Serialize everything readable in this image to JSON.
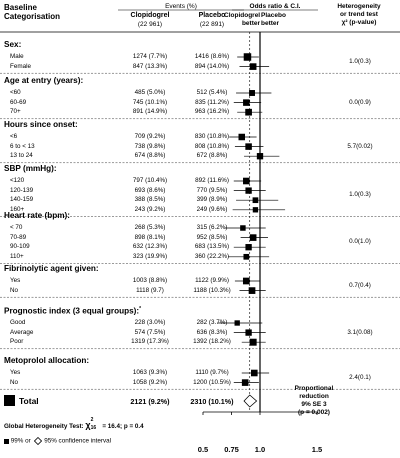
{
  "header": {
    "baseline_line1": "Baseline",
    "baseline_line2": "Categorisation",
    "events_title": "Events (%)",
    "clopidogrel_name": "Clopidogrel",
    "clopidogrel_n": "(22 961)",
    "placebo_name": "Placebo",
    "placebo_n": "(22 891)",
    "or_title": "Odds ratio & C.I.",
    "clop_better_1": "Clopidogrel",
    "clop_better_2": "better",
    "plac_better_1": "Placebo",
    "plac_better_2": "better",
    "het_line1": "Heterogeneity",
    "het_line2": "or trend test",
    "het_line3": "χ² (p-value)"
  },
  "sections": [
    {
      "title": "Sex:",
      "het": "1.0(0.3)",
      "rows": [
        {
          "label": "Male",
          "clop": "1274 (7.7%)",
          "plac": "1416 (8.6%)"
        },
        {
          "label": "Female",
          "clop": "847 (13.3%)",
          "plac": "894 (14.0%)"
        }
      ]
    },
    {
      "title": "Age at entry (years):",
      "het": "0.0(0.9)",
      "rows": [
        {
          "label": "<60",
          "clop": "485 (5.0%)",
          "plac": "512 (5.4%)"
        },
        {
          "label": "60-69",
          "clop": "745 (10.1%)",
          "plac": "835 (11.2%)"
        },
        {
          "label": "70+",
          "clop": "891 (14.9%)",
          "plac": "963 (16.2%)"
        }
      ]
    },
    {
      "title": "Hours since onset:",
      "het": "5.7(0.02)",
      "rows": [
        {
          "label": "<6",
          "clop": "709 (9.2%)",
          "plac": "830 (10.8%)"
        },
        {
          "label": "6 to < 13",
          "clop": "738 (9.8%)",
          "plac": "808 (10.8%)"
        },
        {
          "label": "13 to 24",
          "clop": "674 (8.8%)",
          "plac": "672 (8.8%)"
        }
      ]
    },
    {
      "title": "SBP (mmHg):",
      "het": "1.0(0.3)",
      "rows": [
        {
          "label": "<120",
          "clop": "797 (10.4%)",
          "plac": "892 (11.6%)"
        },
        {
          "label": "120-139",
          "clop": "693 (8.6%)",
          "plac": "770 (9.5%)"
        },
        {
          "label": "140-159",
          "clop": "388 (8.5%)",
          "plac": "399 (8.9%)"
        },
        {
          "label": "160+",
          "clop": "243 (9.2%)",
          "plac": "249 (9.6%)"
        }
      ]
    },
    {
      "title": "Heart rate (bpm):",
      "het": "0.0(1.0)",
      "rows": [
        {
          "label": "< 70",
          "clop": "268 (5.3%)",
          "plac": "315 (6.2%)"
        },
        {
          "label": "70-89",
          "clop": "898 (8.1%)",
          "plac": "952 (8.5%)"
        },
        {
          "label": "90-109",
          "clop": "632 (12.3%)",
          "plac": "683 (13.5%)"
        },
        {
          "label": "110+",
          "clop": "323 (19.9%)",
          "plac": "360 (22.2%)"
        }
      ]
    },
    {
      "title": "Fibrinolytic agent given:",
      "het": "0.7(0.4)",
      "rows": [
        {
          "label": "Yes",
          "clop": "1003 (8.8%)",
          "plac": "1122 (9.9%)"
        },
        {
          "label": "No",
          "clop": "1118 (9.7)",
          "plac": "1188 (10.3%)"
        }
      ]
    },
    {
      "title": "Prognostic index (3 equal groups):",
      "title_sup": "*",
      "het": "3.1(0.08)",
      "rows": [
        {
          "label": "Good",
          "clop": "228 (3.0%)",
          "plac": "282 (3.7%)"
        },
        {
          "label": "Average",
          "clop": "574 (7.5%)",
          "plac": "636 (8.3%)"
        },
        {
          "label": "Poor",
          "clop": "1319 (17.3%)",
          "plac": "1392 (18.2%)"
        }
      ]
    },
    {
      "title": "Metoprolol allocation:",
      "het": "2.4(0.1)",
      "rows": [
        {
          "label": "Yes",
          "clop": "1063 (9.3%)",
          "plac": "1110 (9.7%)"
        },
        {
          "label": "No",
          "clop": "1058 (9.2%)",
          "plac": "1200 (10.5%)"
        }
      ]
    }
  ],
  "total": {
    "label": "Total",
    "clop": "2121 (9.2%)",
    "plac": "2310 (10.1%)"
  },
  "reduction": {
    "line1": "Proportional",
    "line2": "reduction",
    "line3": "9% SE 3",
    "line4": "(p = 0.002)"
  },
  "footer": {
    "global_prefix": "Global Heterogeneity Test:",
    "chi": "χ",
    "chi_sup": "2",
    "chi_sub": "16",
    "chi_value": "= 16.4; p = 0.4",
    "legend_ci99": "99% or",
    "legend_ci95": "95% confidence interval"
  },
  "chart_data": {
    "type": "forest",
    "x_axis": {
      "ticks": [
        0.5,
        0.75,
        1.0,
        1.5
      ],
      "tick_labels": [
        "0.5",
        "0.75",
        "1.0",
        "1.5"
      ],
      "xlim": [
        0.5,
        1.5
      ],
      "reference": 1.0,
      "overall_reference": 0.91
    },
    "colors": {
      "marker": "#000000",
      "ci_line": "#000000",
      "reference_line": "#000000",
      "overall_dashed": "#000000"
    },
    "rows": [
      {
        "group": "Sex",
        "label": "Male",
        "or": 0.89,
        "lo": 0.8,
        "hi": 0.99,
        "weight": 1.0
      },
      {
        "group": "Sex",
        "label": "Female",
        "or": 0.94,
        "lo": 0.82,
        "hi": 1.08,
        "weight": 0.8
      },
      {
        "group": "Age at entry",
        "label": "<60",
        "or": 0.93,
        "lo": 0.79,
        "hi": 1.1,
        "weight": 0.65
      },
      {
        "group": "Age at entry",
        "label": "60-69",
        "or": 0.88,
        "lo": 0.77,
        "hi": 1.01,
        "weight": 0.78
      },
      {
        "group": "Age at entry",
        "label": "70+",
        "or": 0.9,
        "lo": 0.8,
        "hi": 1.02,
        "weight": 0.82
      },
      {
        "group": "Hours since onset",
        "label": "<6",
        "or": 0.84,
        "lo": 0.73,
        "hi": 0.97,
        "weight": 0.78
      },
      {
        "group": "Hours since onset",
        "label": "6 to < 13",
        "or": 0.9,
        "lo": 0.78,
        "hi": 1.03,
        "weight": 0.78
      },
      {
        "group": "Hours since onset",
        "label": "13 to 24",
        "or": 1.0,
        "lo": 0.86,
        "hi": 1.17,
        "weight": 0.74
      },
      {
        "group": "SBP",
        "label": "<120",
        "or": 0.88,
        "lo": 0.77,
        "hi": 1.01,
        "weight": 0.8
      },
      {
        "group": "SBP",
        "label": "120-139",
        "or": 0.9,
        "lo": 0.77,
        "hi": 1.05,
        "weight": 0.74
      },
      {
        "group": "SBP",
        "label": "140-159",
        "or": 0.96,
        "lo": 0.79,
        "hi": 1.16,
        "weight": 0.6
      },
      {
        "group": "SBP",
        "label": "160+",
        "or": 0.96,
        "lo": 0.76,
        "hi": 1.22,
        "weight": 0.52
      },
      {
        "group": "Heart rate",
        "label": "< 70",
        "or": 0.85,
        "lo": 0.69,
        "hi": 1.05,
        "weight": 0.55
      },
      {
        "group": "Heart rate",
        "label": "70-89",
        "or": 0.94,
        "lo": 0.83,
        "hi": 1.07,
        "weight": 0.8
      },
      {
        "group": "Heart rate",
        "label": "90-109",
        "or": 0.9,
        "lo": 0.77,
        "hi": 1.05,
        "weight": 0.74
      },
      {
        "group": "Heart rate",
        "label": "110+",
        "or": 0.88,
        "lo": 0.72,
        "hi": 1.08,
        "weight": 0.6
      },
      {
        "group": "Fibrinolytic agent given",
        "label": "Yes",
        "or": 0.88,
        "lo": 0.78,
        "hi": 1.0,
        "weight": 0.82
      },
      {
        "group": "Fibrinolytic agent given",
        "label": "No",
        "or": 0.93,
        "lo": 0.82,
        "hi": 1.05,
        "weight": 0.82
      },
      {
        "group": "Prognostic index",
        "label": "Good",
        "or": 0.8,
        "lo": 0.63,
        "hi": 1.02,
        "weight": 0.52
      },
      {
        "group": "Prognostic index",
        "label": "Average",
        "or": 0.9,
        "lo": 0.77,
        "hi": 1.05,
        "weight": 0.74
      },
      {
        "group": "Prognostic index",
        "label": "Poor",
        "or": 0.94,
        "lo": 0.84,
        "hi": 1.05,
        "weight": 0.88
      },
      {
        "group": "Metoprolol allocation",
        "label": "Yes",
        "or": 0.95,
        "lo": 0.84,
        "hi": 1.08,
        "weight": 0.8
      },
      {
        "group": "Metoprolol allocation",
        "label": "No",
        "or": 0.87,
        "lo": 0.77,
        "hi": 0.99,
        "weight": 0.8
      }
    ],
    "total": {
      "label": "Total",
      "or": 0.91,
      "lo": 0.86,
      "hi": 0.97
    }
  }
}
